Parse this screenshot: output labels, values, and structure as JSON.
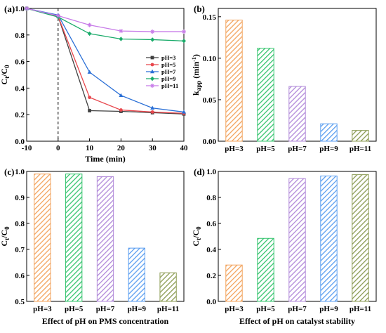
{
  "panels": [
    {
      "letter": "(a)"
    },
    {
      "letter": "(b)"
    },
    {
      "letter": "(c)"
    },
    {
      "letter": "(d)"
    }
  ],
  "chart_data": [
    {
      "id": "a",
      "type": "line",
      "title": "",
      "xlabel": "Time (min)",
      "ylabel_main": "C",
      "ylabel_sub1": "t",
      "ylabel_mid": "/C",
      "ylabel_sub2": "0",
      "xlim": [
        -10,
        40
      ],
      "ylim": [
        0.0,
        1.0
      ],
      "xticks": [
        "-10",
        "0",
        "10",
        "20",
        "30",
        "40"
      ],
      "yticks": [
        "0.0",
        "0.2",
        "0.4",
        "0.6",
        "0.8",
        "1.0"
      ],
      "x": [
        -10,
        0,
        10,
        20,
        30,
        40
      ],
      "vline_x": 0,
      "legend_position": "center-right",
      "series": [
        {
          "name": "pH=3",
          "color": "#404040",
          "marker": "square",
          "values": [
            1.0,
            0.94,
            0.23,
            0.225,
            0.215,
            0.205
          ]
        },
        {
          "name": "pH=5",
          "color": "#e8474d",
          "marker": "circle",
          "values": [
            1.0,
            0.94,
            0.33,
            0.235,
            0.22,
            0.21
          ]
        },
        {
          "name": "pH=7",
          "color": "#2a6fd6",
          "marker": "triangle",
          "values": [
            1.0,
            0.95,
            0.52,
            0.345,
            0.25,
            0.22
          ]
        },
        {
          "name": "pH=9",
          "color": "#1aab6a",
          "marker": "diamond",
          "values": [
            1.0,
            0.935,
            0.81,
            0.77,
            0.765,
            0.755
          ]
        },
        {
          "name": "pH=11",
          "color": "#c77be8",
          "marker": "star",
          "values": [
            1.0,
            0.945,
            0.875,
            0.83,
            0.825,
            0.825
          ]
        }
      ]
    },
    {
      "id": "b",
      "type": "bar",
      "title": "",
      "xlabel": "",
      "ylabel_main": "k",
      "ylabel_sub1": "app",
      "ylabel_mid": " (min",
      "ylabel_sup": "-1",
      "ylabel_end": ")",
      "ylim": [
        0.0,
        0.16
      ],
      "yticks": [
        "0.00",
        "0.05",
        "0.10",
        "0.15"
      ],
      "categories": [
        "pH=3",
        "pH=5",
        "pH=7",
        "pH=9",
        "pH=11"
      ],
      "values": [
        0.146,
        0.112,
        0.066,
        0.021,
        0.013
      ],
      "colors": [
        "#f3a35c",
        "#35c46e",
        "#b189d9",
        "#5b9ef0",
        "#8a9a52"
      ]
    },
    {
      "id": "c",
      "type": "bar",
      "title": "",
      "xlabel": "Effect of pH on PMS concentration",
      "ylabel_main": "C",
      "ylabel_sub1": "t",
      "ylabel_mid": "/C",
      "ylabel_sub2": "0",
      "ylim": [
        0.5,
        1.0
      ],
      "yticks": [
        "0.5",
        "0.6",
        "0.7",
        "0.8",
        "0.9",
        "1.0"
      ],
      "categories": [
        "pH=3",
        "pH=5",
        "pH=7",
        "pH=9",
        "pH=11"
      ],
      "values": [
        0.99,
        0.99,
        0.98,
        0.705,
        0.61
      ],
      "colors": [
        "#f3a35c",
        "#35c46e",
        "#b189d9",
        "#5b9ef0",
        "#8a9a52"
      ]
    },
    {
      "id": "d",
      "type": "bar",
      "title": "",
      "xlabel": "Effect of pH on catalyst stability",
      "ylabel_main": "C",
      "ylabel_sub1": "t",
      "ylabel_mid": "/C",
      "ylabel_sub2": "0",
      "ylim": [
        0.0,
        1.0
      ],
      "yticks": [
        "0.0",
        "0.2",
        "0.4",
        "0.6",
        "0.8",
        "1.0"
      ],
      "categories": [
        "pH=3",
        "pH=5",
        "pH=7",
        "pH=9",
        "pH=11"
      ],
      "values": [
        0.28,
        0.485,
        0.945,
        0.965,
        0.975
      ],
      "colors": [
        "#f3a35c",
        "#35c46e",
        "#b189d9",
        "#5b9ef0",
        "#8a9a52"
      ]
    }
  ]
}
